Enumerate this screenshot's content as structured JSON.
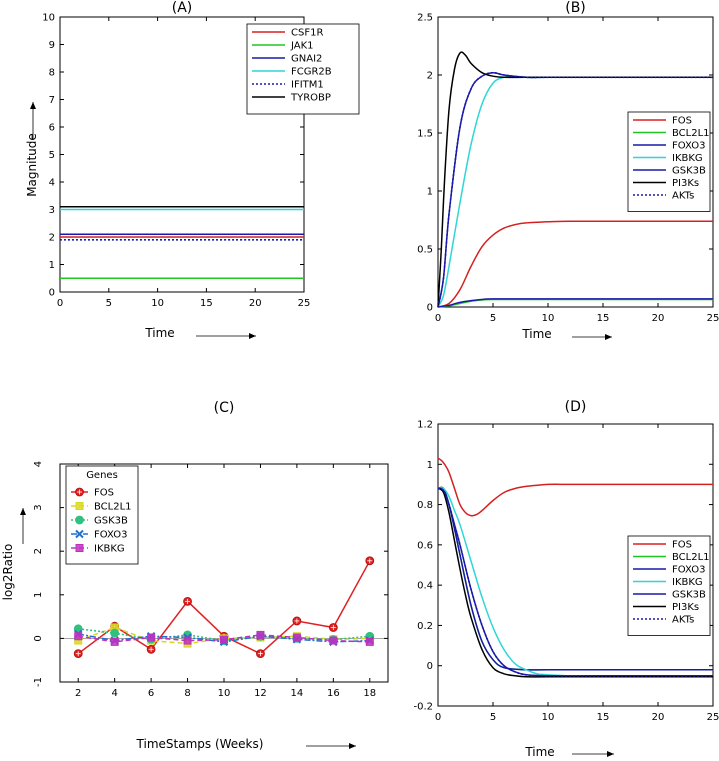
{
  "chart_data": [
    {
      "panel": "(A)",
      "type": "line",
      "title": "(A)",
      "xlabel": "Time",
      "ylabel": "Magnitude",
      "xlim": [
        0,
        25
      ],
      "ylim": [
        0,
        10
      ],
      "xticks": [
        0,
        5,
        10,
        15,
        20,
        25
      ],
      "yticks": [
        0,
        1,
        2,
        3,
        4,
        5,
        6,
        7,
        8,
        9,
        10
      ],
      "legend_position": "top-right",
      "series": [
        {
          "name": "CSF1R",
          "color": "#d62020",
          "style": "solid",
          "x": [
            0,
            25
          ],
          "y": [
            2.0,
            2.0
          ]
        },
        {
          "name": "JAK1",
          "color": "#22c522",
          "style": "solid",
          "x": [
            0,
            25
          ],
          "y": [
            0.5,
            0.5
          ]
        },
        {
          "name": "GNAI2",
          "color": "#1a1aa8",
          "style": "solid",
          "x": [
            0,
            25
          ],
          "y": [
            2.1,
            2.1
          ]
        },
        {
          "name": "FCGR2B",
          "color": "#2fd6d6",
          "style": "solid",
          "x": [
            0,
            25
          ],
          "y": [
            3.0,
            3.0
          ]
        },
        {
          "name": "IFITM1",
          "color": "#1a1aa8",
          "style": "dotted",
          "x": [
            0,
            25
          ],
          "y": [
            1.9,
            1.9
          ]
        },
        {
          "name": "TYROBP",
          "color": "#000000",
          "style": "solid",
          "x": [
            0,
            25
          ],
          "y": [
            3.1,
            3.1
          ]
        }
      ]
    },
    {
      "panel": "(B)",
      "type": "line",
      "title": "(B)",
      "xlabel": "Time",
      "ylabel": "",
      "xlim": [
        0,
        25
      ],
      "ylim": [
        0,
        2.5
      ],
      "xticks": [
        0,
        5,
        10,
        15,
        20,
        25
      ],
      "yticks": [
        0,
        0.5,
        1,
        1.5,
        2,
        2.5
      ],
      "legend_position": "right",
      "series": [
        {
          "name": "FOS",
          "color": "#d62020",
          "style": "solid",
          "x": [
            0,
            1,
            2,
            3,
            4,
            5,
            6,
            7,
            8,
            10,
            12,
            15,
            20,
            25
          ],
          "y": [
            0,
            0.03,
            0.15,
            0.35,
            0.52,
            0.62,
            0.68,
            0.71,
            0.725,
            0.735,
            0.74,
            0.74,
            0.74,
            0.74
          ]
        },
        {
          "name": "BCL2L1",
          "color": "#22c522",
          "style": "solid",
          "x": [
            0,
            1,
            2,
            3,
            4,
            5,
            10,
            15,
            20,
            25
          ],
          "y": [
            0,
            0.01,
            0.03,
            0.05,
            0.06,
            0.065,
            0.065,
            0.065,
            0.065,
            0.065
          ]
        },
        {
          "name": "FOXO3",
          "color": "#1a1aa8",
          "style": "solid",
          "x": [
            0,
            1,
            2,
            3,
            4,
            5,
            10,
            15,
            20,
            25
          ],
          "y": [
            0,
            0.015,
            0.04,
            0.055,
            0.065,
            0.07,
            0.07,
            0.07,
            0.07,
            0.07
          ]
        },
        {
          "name": "IKBKG",
          "color": "#2fd6d6",
          "style": "solid",
          "x": [
            0,
            0.5,
            1,
            2,
            3,
            4,
            5,
            6,
            7,
            8,
            10,
            15,
            20,
            25
          ],
          "y": [
            0,
            0.1,
            0.35,
            0.9,
            1.4,
            1.75,
            1.93,
            1.98,
            1.99,
            1.98,
            1.98,
            1.98,
            1.98,
            1.98
          ]
        },
        {
          "name": "GSK3B",
          "color": "#1a1aa8",
          "style": "solid",
          "x": [
            0,
            0.5,
            1,
            2,
            3,
            4,
            5,
            6,
            8,
            10,
            15,
            20,
            25
          ],
          "y": [
            0,
            0.25,
            0.8,
            1.55,
            1.88,
            1.99,
            2.02,
            2.0,
            1.98,
            1.98,
            1.98,
            1.98,
            1.98
          ]
        },
        {
          "name": "PI3Ks",
          "color": "#000000",
          "style": "solid",
          "x": [
            0,
            0.3,
            0.6,
            1,
            1.5,
            2,
            2.5,
            3,
            4,
            5,
            6,
            8,
            10,
            15,
            20,
            25
          ],
          "y": [
            0,
            0.5,
            1.1,
            1.7,
            2.05,
            2.19,
            2.17,
            2.1,
            2.02,
            1.99,
            1.98,
            1.98,
            1.98,
            1.98,
            1.98,
            1.98
          ]
        },
        {
          "name": "AKTs",
          "color": "#1a1aa8",
          "style": "dotted",
          "x": [
            0,
            0.5,
            1,
            2,
            3,
            4,
            5,
            6,
            8,
            10,
            15,
            20,
            25
          ],
          "y": [
            0,
            0.25,
            0.8,
            1.55,
            1.88,
            1.99,
            2.02,
            2.0,
            1.98,
            1.98,
            1.98,
            1.98,
            1.98
          ]
        }
      ]
    },
    {
      "panel": "(C)",
      "type": "line",
      "title": "(C)",
      "xlabel": "TimeStamps (Weeks)",
      "ylabel": "log2Ratio",
      "xlim": [
        1,
        19
      ],
      "ylim": [
        -1,
        4
      ],
      "xticks": [
        2,
        4,
        6,
        8,
        10,
        12,
        14,
        16,
        18
      ],
      "yticks": [
        -1,
        0,
        1,
        2,
        3,
        4
      ],
      "legend_position": "top-left",
      "legend_title": "Genes",
      "series": [
        {
          "name": "FOS",
          "color": "#e02020",
          "marker": "circle",
          "style": "solid",
          "x": [
            2,
            4,
            6,
            8,
            10,
            12,
            14,
            16,
            18
          ],
          "y": [
            -0.35,
            0.28,
            -0.25,
            0.85,
            0.05,
            -0.35,
            0.4,
            0.25,
            1.78
          ]
        },
        {
          "name": "BCL2L1",
          "color": "#d8d820",
          "marker": "square",
          "style": "dashed",
          "x": [
            2,
            4,
            6,
            8,
            10,
            12,
            14,
            16,
            18
          ],
          "y": [
            -0.05,
            0.25,
            -0.05,
            -0.12,
            0.0,
            0.02,
            0.05,
            -0.02,
            0.0
          ]
        },
        {
          "name": "GSK3B",
          "color": "#30c080",
          "marker": "circle",
          "style": "dotted",
          "x": [
            2,
            4,
            6,
            8,
            10,
            12,
            14,
            16,
            18
          ],
          "y": [
            0.22,
            0.12,
            -0.02,
            0.08,
            -0.05,
            0.05,
            0.0,
            -0.03,
            0.05
          ]
        },
        {
          "name": "FOXO3",
          "color": "#2070d0",
          "marker": "x",
          "style": "dashdot",
          "x": [
            2,
            4,
            6,
            8,
            10,
            12,
            14,
            16,
            18
          ],
          "y": [
            0.1,
            -0.05,
            0.05,
            0.02,
            -0.08,
            0.05,
            -0.02,
            -0.08,
            -0.05
          ]
        },
        {
          "name": "IKBKG",
          "color": "#c030c0",
          "marker": "square",
          "style": "dashed",
          "x": [
            2,
            4,
            6,
            8,
            10,
            12,
            14,
            16,
            18
          ],
          "y": [
            0.05,
            -0.08,
            0.02,
            -0.05,
            -0.03,
            0.08,
            0.02,
            -0.05,
            -0.08
          ]
        }
      ]
    },
    {
      "panel": "(D)",
      "type": "line",
      "title": "(D)",
      "xlabel": "Time",
      "ylabel": "",
      "xlim": [
        0,
        25
      ],
      "ylim": [
        -0.2,
        1.2
      ],
      "xticks": [
        0,
        5,
        10,
        15,
        20,
        25
      ],
      "yticks": [
        -0.2,
        0,
        0.2,
        0.4,
        0.6,
        0.8,
        1,
        1.2
      ],
      "legend_position": "right",
      "series": [
        {
          "name": "FOS",
          "color": "#d62020",
          "style": "solid",
          "x": [
            0,
            0.3,
            0.6,
            1,
            1.5,
            2,
            2.5,
            3,
            3.5,
            4,
            5,
            6,
            7,
            8,
            10,
            12,
            15,
            20,
            25
          ],
          "y": [
            1.03,
            1.02,
            1.0,
            0.96,
            0.88,
            0.8,
            0.76,
            0.745,
            0.75,
            0.77,
            0.82,
            0.86,
            0.88,
            0.89,
            0.9,
            0.9,
            0.9,
            0.9,
            0.9
          ]
        },
        {
          "name": "BCL2L1",
          "color": "#22c522",
          "style": "solid",
          "x": [
            0,
            0.5,
            1,
            1.5,
            2,
            3,
            4,
            5,
            6,
            8,
            10,
            15,
            20,
            25
          ],
          "y": [
            0.88,
            0.88,
            0.8,
            0.68,
            0.55,
            0.3,
            0.12,
            0.03,
            -0.01,
            -0.02,
            -0.02,
            -0.02,
            -0.02,
            -0.02
          ]
        },
        {
          "name": "FOXO3",
          "color": "#1a1aa8",
          "style": "solid",
          "x": [
            0,
            0.5,
            1,
            1.5,
            2,
            3,
            4,
            5,
            6,
            8,
            10,
            15,
            20,
            25
          ],
          "y": [
            0.88,
            0.88,
            0.8,
            0.68,
            0.55,
            0.3,
            0.12,
            0.03,
            -0.01,
            -0.02,
            -0.02,
            -0.02,
            -0.02,
            -0.02
          ]
        },
        {
          "name": "IKBKG",
          "color": "#2fd6d6",
          "style": "solid",
          "x": [
            0,
            0.5,
            1,
            1.5,
            2,
            3,
            4,
            5,
            6,
            7,
            8,
            9,
            10,
            12,
            15,
            20,
            25
          ],
          "y": [
            0.88,
            0.88,
            0.84,
            0.77,
            0.7,
            0.52,
            0.34,
            0.19,
            0.08,
            0.01,
            -0.02,
            -0.04,
            -0.045,
            -0.05,
            -0.05,
            -0.05,
            -0.05
          ]
        },
        {
          "name": "GSK3B",
          "color": "#1a1aa8",
          "style": "solid",
          "x": [
            0,
            0.5,
            1,
            1.5,
            2,
            3,
            4,
            5,
            6,
            7,
            8,
            10,
            15,
            20,
            25
          ],
          "y": [
            0.88,
            0.87,
            0.8,
            0.7,
            0.6,
            0.38,
            0.2,
            0.07,
            0.0,
            -0.03,
            -0.045,
            -0.05,
            -0.05,
            -0.05,
            -0.05
          ]
        },
        {
          "name": "PI3Ks",
          "color": "#000000",
          "style": "solid",
          "x": [
            0,
            0.5,
            1,
            1.5,
            2,
            2.5,
            3,
            4,
            5,
            6,
            7,
            8,
            10,
            15,
            20,
            25
          ],
          "y": [
            0.88,
            0.86,
            0.76,
            0.62,
            0.48,
            0.35,
            0.24,
            0.08,
            -0.01,
            -0.04,
            -0.05,
            -0.055,
            -0.055,
            -0.055,
            -0.055,
            -0.055
          ]
        },
        {
          "name": "AKTs",
          "color": "#1a1aa8",
          "style": "dotted",
          "x": [
            0,
            0.5,
            1,
            1.5,
            2,
            3,
            4,
            5,
            6,
            7,
            8,
            10,
            15,
            20,
            25
          ],
          "y": [
            0.88,
            0.87,
            0.8,
            0.7,
            0.6,
            0.38,
            0.2,
            0.07,
            0.0,
            -0.03,
            -0.045,
            -0.05,
            -0.05,
            -0.05,
            -0.05
          ]
        }
      ]
    }
  ]
}
